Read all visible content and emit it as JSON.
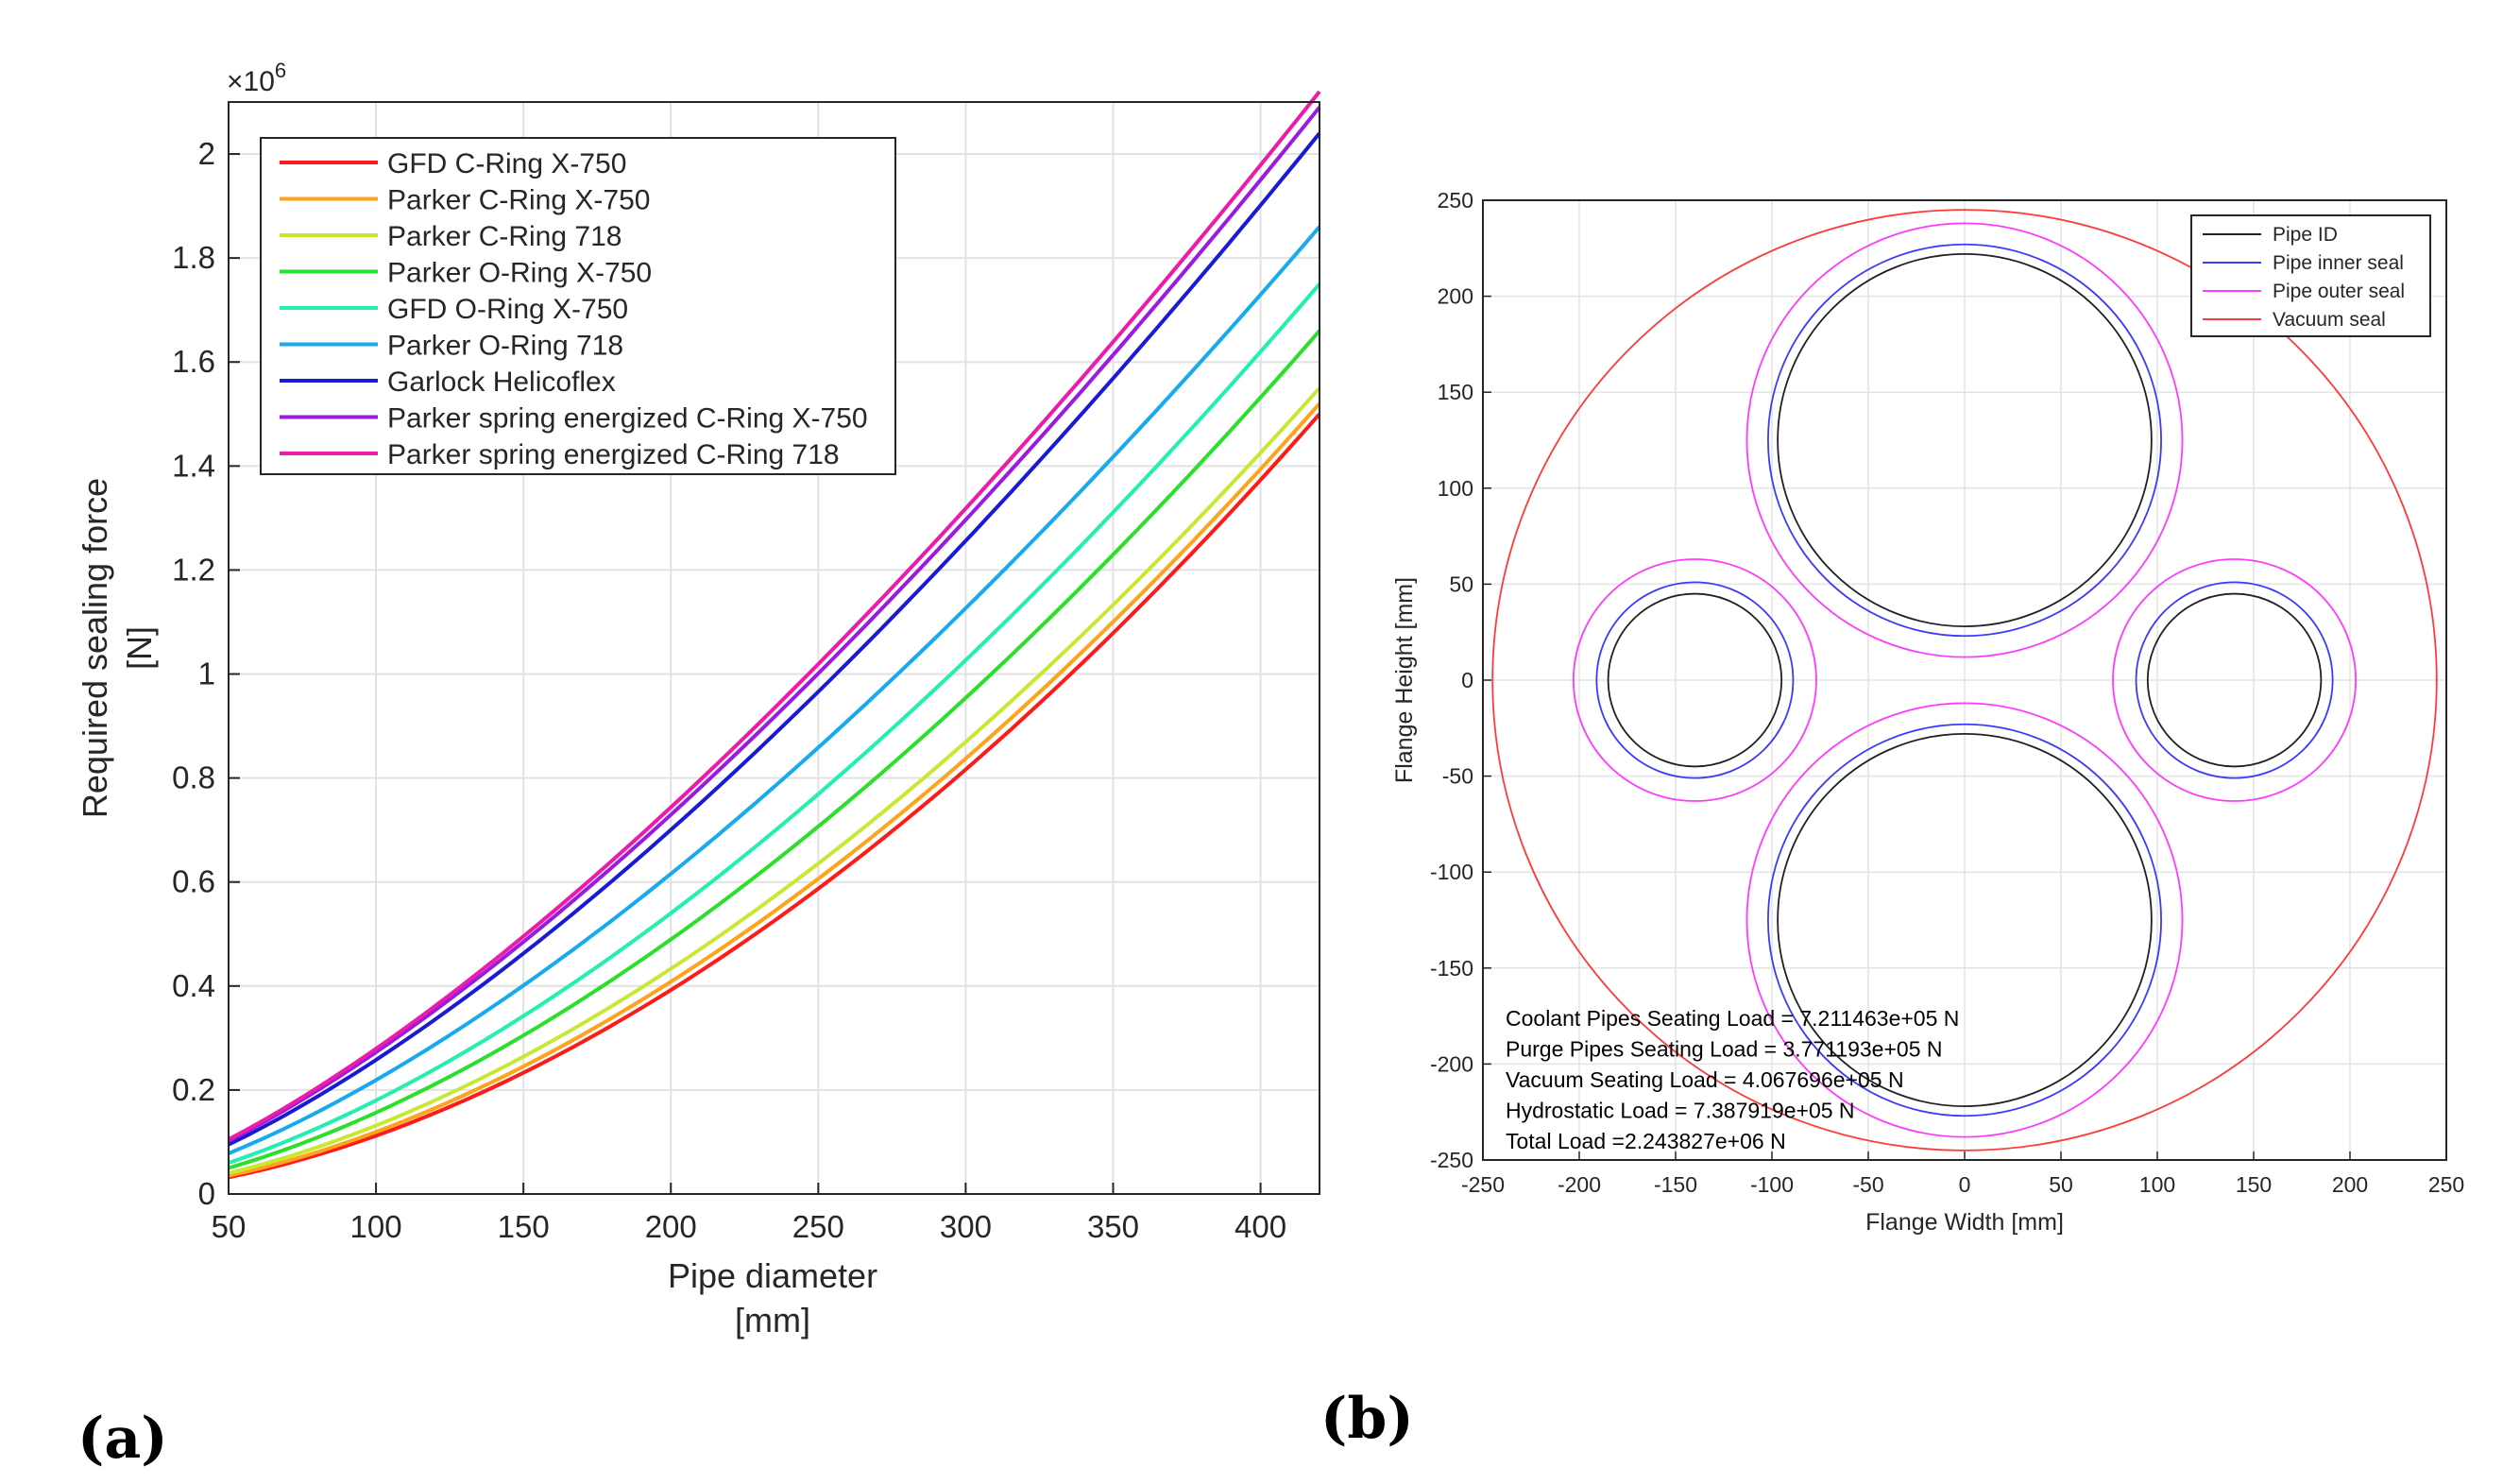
{
  "chart_data": [
    {
      "type": "line",
      "panel_label": "(a)",
      "xlabel": "Pipe diameter",
      "xlabel_units": "[mm]",
      "ylabel": "Required sealing force",
      "ylabel_units": "[N]",
      "y_exponent_label": "×10",
      "y_exponent_power": "6",
      "xlim": [
        50,
        420
      ],
      "ylim": [
        0,
        2100000
      ],
      "xticks": [
        "50",
        "100",
        "150",
        "200",
        "250",
        "300",
        "350",
        "400"
      ],
      "yticks": [
        "0",
        "0.2",
        "0.4",
        "0.6",
        "0.8",
        "1",
        "1.2",
        "1.4",
        "1.6",
        "1.8",
        "2"
      ],
      "grid": true,
      "legend_position": "top-left",
      "x": [
        50,
        420
      ],
      "series": [
        {
          "name": "GFD C-Ring X-750",
          "color": "#ff1a1a",
          "values": [
            32000,
            1500000
          ]
        },
        {
          "name": "Parker C-Ring X-750",
          "color": "#ffa31a",
          "values": [
            35000,
            1520000
          ]
        },
        {
          "name": "Parker C-Ring 718",
          "color": "#c8e832",
          "values": [
            40000,
            1550000
          ]
        },
        {
          "name": "Parker O-Ring X-750",
          "color": "#2ae02a",
          "values": [
            50000,
            1660000
          ]
        },
        {
          "name": "GFD O-Ring X-750",
          "color": "#22f0b0",
          "values": [
            60000,
            1750000
          ]
        },
        {
          "name": "Parker O-Ring 718",
          "color": "#18aaee",
          "values": [
            78000,
            1860000
          ]
        },
        {
          "name": "Garlock Helicoflex",
          "color": "#1a1ad6",
          "values": [
            95000,
            2040000
          ]
        },
        {
          "name": "Parker spring energized C-Ring X-750",
          "color": "#9a1ae0",
          "values": [
            102000,
            2090000
          ]
        },
        {
          "name": "Parker spring energized C-Ring 718",
          "color": "#ee1aaa",
          "values": [
            105000,
            2120000
          ]
        }
      ]
    },
    {
      "type": "scatter",
      "subtype": "circles",
      "panel_label": "(b)",
      "xlabel": "Flange Width [mm]",
      "ylabel": "Flange Height [mm]",
      "xlim": [
        -250,
        250
      ],
      "ylim": [
        -250,
        250
      ],
      "xticks": [
        "-250",
        "-200",
        "-150",
        "-100",
        "-50",
        "0",
        "50",
        "100",
        "150",
        "200",
        "250"
      ],
      "yticks": [
        "-250",
        "-200",
        "-150",
        "-100",
        "-50",
        "0",
        "50",
        "100",
        "150",
        "200",
        "250"
      ],
      "grid": true,
      "legend_position": "top-right",
      "legend": [
        {
          "name": "Pipe ID",
          "color": "#202020"
        },
        {
          "name": "Pipe inner seal",
          "color": "#3a3aff"
        },
        {
          "name": "Pipe outer seal",
          "color": "#ff3aff"
        },
        {
          "name": "Vacuum seal",
          "color": "#ff3a3a"
        }
      ],
      "circles": [
        {
          "series": "Vacuum seal",
          "cx": 0,
          "cy": 0,
          "r": 245
        },
        {
          "series": "Pipe outer seal",
          "cx": 0,
          "cy": 125,
          "r": 113
        },
        {
          "series": "Pipe inner seal",
          "cx": 0,
          "cy": 125,
          "r": 102
        },
        {
          "series": "Pipe ID",
          "cx": 0,
          "cy": 125,
          "r": 97
        },
        {
          "series": "Pipe outer seal",
          "cx": 0,
          "cy": -125,
          "r": 113
        },
        {
          "series": "Pipe inner seal",
          "cx": 0,
          "cy": -125,
          "r": 102
        },
        {
          "series": "Pipe ID",
          "cx": 0,
          "cy": -125,
          "r": 97
        },
        {
          "series": "Pipe outer seal",
          "cx": -140,
          "cy": 0,
          "r": 63
        },
        {
          "series": "Pipe inner seal",
          "cx": -140,
          "cy": 0,
          "r": 51
        },
        {
          "series": "Pipe ID",
          "cx": -140,
          "cy": 0,
          "r": 45
        },
        {
          "series": "Pipe outer seal",
          "cx": 140,
          "cy": 0,
          "r": 63
        },
        {
          "series": "Pipe inner seal",
          "cx": 140,
          "cy": 0,
          "r": 51
        },
        {
          "series": "Pipe ID",
          "cx": 140,
          "cy": 0,
          "r": 45
        }
      ],
      "annotations": [
        "Coolant Pipes Seating Load = 7.211463e+05 N",
        "Purge Pipes Seating Load = 3.771193e+05 N",
        "Vacuum Seating Load = 4.067696e+05 N",
        "Hydrostatic Load = 7.387919e+05 N",
        "Total Load =2.243827e+06 N"
      ]
    }
  ]
}
